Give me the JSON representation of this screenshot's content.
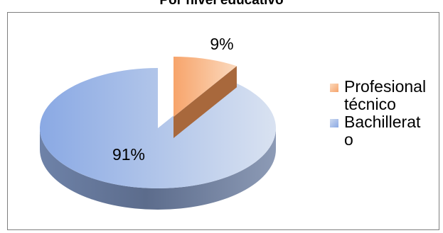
{
  "chart_data": {
    "type": "pie",
    "title": "Por nivel educativo",
    "categories": [
      "Profesional técnico",
      "Bachillerato"
    ],
    "values": [
      9,
      91
    ],
    "labels": [
      "9%",
      "91%"
    ],
    "colors": [
      "#f6b07a",
      "#a9bfe6"
    ],
    "legend_position": "right",
    "style": "3d-exploded"
  },
  "legend": {
    "items": [
      {
        "label": "Profesional técnico",
        "color": "#f6b07a"
      },
      {
        "label": "Bachillerato",
        "color": "#a9bfe6"
      }
    ]
  }
}
